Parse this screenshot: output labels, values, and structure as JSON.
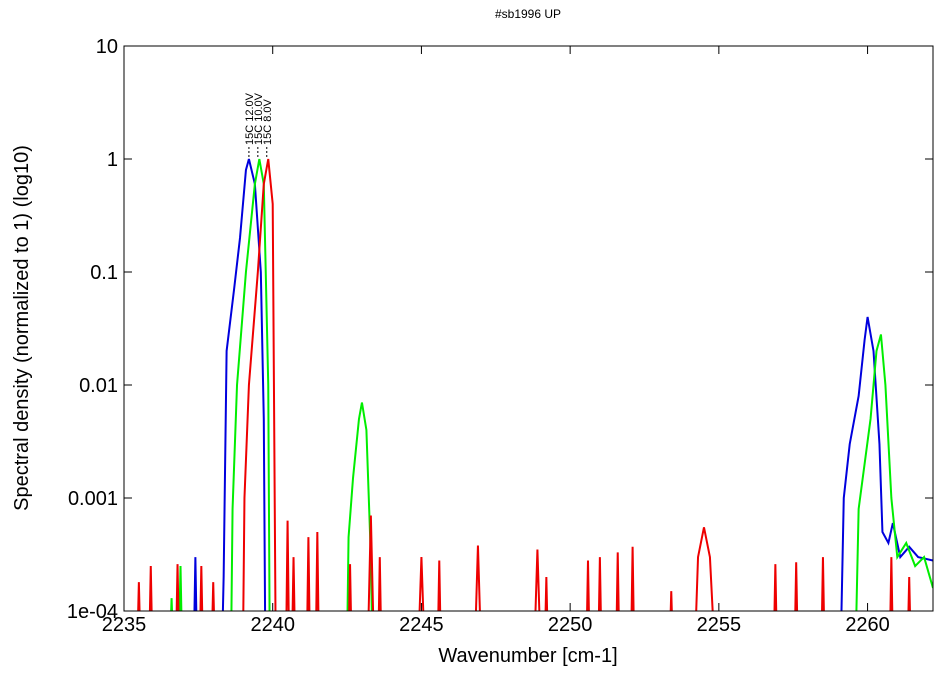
{
  "chart_data": {
    "type": "line",
    "title": "#sb1996 UP",
    "x_label": "Wavenumber [cm-1]",
    "y_label": "Spectral density (normalized to 1) (log10)",
    "xlim": [
      2235,
      2262.2
    ],
    "ylim": [
      0.0001,
      10
    ],
    "log_y": true,
    "xticks": [
      2235,
      2240,
      2245,
      2250,
      2255,
      2260
    ],
    "yticks": [
      {
        "value": 0.0001,
        "label": "1e-04"
      },
      0.001,
      0.01,
      0.1,
      1,
      10
    ],
    "annotations": [
      {
        "text": "15C 12.0V",
        "x": 2239.2,
        "y": 1
      },
      {
        "text": "15C 10.0V",
        "x": 2239.5,
        "y": 1
      },
      {
        "text": "15C 8.0V",
        "x": 2239.8,
        "y": 1
      }
    ],
    "series": [
      {
        "name": "15C 12.0V",
        "color": "#0000dd",
        "x": [
          2237.35,
          2237.4,
          2237.45,
          2237.5,
          2238.3,
          2238.35,
          2238.45,
          2238.7,
          2238.9,
          2239.1,
          2239.2,
          2239.4,
          2239.6,
          2239.7,
          2239.75,
          2239.8,
          2259.1,
          2259.2,
          2259.4,
          2259.7,
          2259.9,
          2260.0,
          2260.2,
          2260.4,
          2260.5,
          2260.7,
          2260.85,
          2261.1,
          2261.4,
          2261.7,
          2262.2
        ],
        "values": [
          5e-05,
          0.0003,
          5e-05,
          null,
          5e-05,
          0.0002,
          0.02,
          0.07,
          0.2,
          0.8,
          1.0,
          0.6,
          0.1,
          0.005,
          5e-05,
          null,
          5e-05,
          0.001,
          0.003,
          0.008,
          0.025,
          0.04,
          0.02,
          0.003,
          0.0005,
          0.0004,
          0.0006,
          0.0003,
          0.00037,
          0.0003,
          0.00028
        ]
      },
      {
        "name": "15C 10.0V",
        "color": "#00ee00",
        "x": [
          2236.55,
          2236.6,
          2236.65,
          2236.7,
          2236.85,
          2236.9,
          2236.95,
          2237.0,
          2238.6,
          2238.65,
          2238.8,
          2239.1,
          2239.4,
          2239.55,
          2239.7,
          2239.85,
          2239.9,
          2240.0,
          2242.5,
          2242.55,
          2242.7,
          2242.9,
          2243.0,
          2243.15,
          2243.3,
          2243.35,
          2243.4,
          2259.6,
          2259.7,
          2259.9,
          2260.1,
          2260.3,
          2260.45,
          2260.6,
          2260.8,
          2261.0,
          2261.3,
          2261.6,
          2261.9,
          2262.2
        ],
        "values": [
          5e-05,
          0.00013,
          5e-05,
          null,
          5e-05,
          0.00025,
          5e-05,
          null,
          5e-05,
          0.0008,
          0.01,
          0.1,
          0.6,
          1.0,
          0.6,
          0.01,
          5e-05,
          null,
          5e-05,
          0.00045,
          0.0015,
          0.005,
          0.007,
          0.004,
          0.0003,
          5e-05,
          null,
          5e-05,
          0.0008,
          0.002,
          0.005,
          0.02,
          0.028,
          0.01,
          0.001,
          0.0003,
          0.0004,
          0.00025,
          0.0003,
          0.00016
        ]
      },
      {
        "name": "15C 8.0V",
        "color": "#ee0000",
        "x": [
          2235.45,
          2235.5,
          2235.55,
          2235.85,
          2235.9,
          2235.95,
          2236.75,
          2236.8,
          2236.85,
          2237.55,
          2237.6,
          2237.65,
          2237.95,
          2238.0,
          2238.05,
          2239.0,
          2239.05,
          2239.2,
          2239.5,
          2239.7,
          2239.85,
          2240.0,
          2240.1,
          2240.45,
          2240.5,
          2240.55,
          2240.65,
          2240.7,
          2240.75,
          2241.15,
          2241.2,
          2241.25,
          2241.45,
          2241.5,
          2241.55,
          2242.55,
          2242.6,
          2242.65,
          2243.2,
          2243.3,
          2243.4,
          2243.55,
          2243.6,
          2243.65,
          2244.9,
          2245.0,
          2245.1,
          2245.55,
          2245.6,
          2245.65,
          2246.8,
          2246.9,
          2247.0,
          2248.8,
          2248.9,
          2249.0,
          2249.15,
          2249.2,
          2249.25,
          2250.55,
          2250.6,
          2250.65,
          2250.95,
          2251.0,
          2251.05,
          2251.55,
          2251.6,
          2251.65,
          2252.05,
          2252.1,
          2252.15,
          2253.35,
          2253.4,
          2253.45,
          2254.2,
          2254.3,
          2254.5,
          2254.7,
          2254.85,
          2256.85,
          2256.9,
          2256.95,
          2257.55,
          2257.6,
          2257.65,
          2258.45,
          2258.5,
          2258.55,
          2260.75,
          2260.8,
          2260.85,
          2261.35,
          2261.4,
          2261.45
        ],
        "values": [
          5e-05,
          0.00018,
          5e-05,
          5e-05,
          0.00025,
          5e-05,
          5e-05,
          0.00026,
          5e-05,
          5e-05,
          0.00025,
          5e-05,
          5e-05,
          0.00018,
          5e-05,
          5e-05,
          0.001,
          0.01,
          0.1,
          0.6,
          1.0,
          0.4,
          5e-05,
          5e-05,
          0.00063,
          5e-05,
          5e-05,
          0.0003,
          5e-05,
          5e-05,
          0.00045,
          5e-05,
          5e-05,
          0.0005,
          5e-05,
          5e-05,
          0.00026,
          5e-05,
          5e-05,
          0.0007,
          5e-05,
          5e-05,
          0.0003,
          5e-05,
          5e-05,
          0.0003,
          5e-05,
          5e-05,
          0.00028,
          5e-05,
          5e-05,
          0.00038,
          5e-05,
          5e-05,
          0.00035,
          5e-05,
          5e-05,
          0.0002,
          5e-05,
          5e-05,
          0.00028,
          5e-05,
          5e-05,
          0.0003,
          5e-05,
          5e-05,
          0.00033,
          5e-05,
          5e-05,
          0.00037,
          5e-05,
          5e-05,
          0.00015,
          5e-05,
          5e-05,
          0.0003,
          0.00055,
          0.0003,
          5e-05,
          5e-05,
          0.00026,
          5e-05,
          5e-05,
          0.00027,
          5e-05,
          5e-05,
          0.0003,
          5e-05,
          5e-05,
          0.0003,
          5e-05,
          5e-05,
          0.0002,
          5e-05
        ]
      }
    ]
  }
}
